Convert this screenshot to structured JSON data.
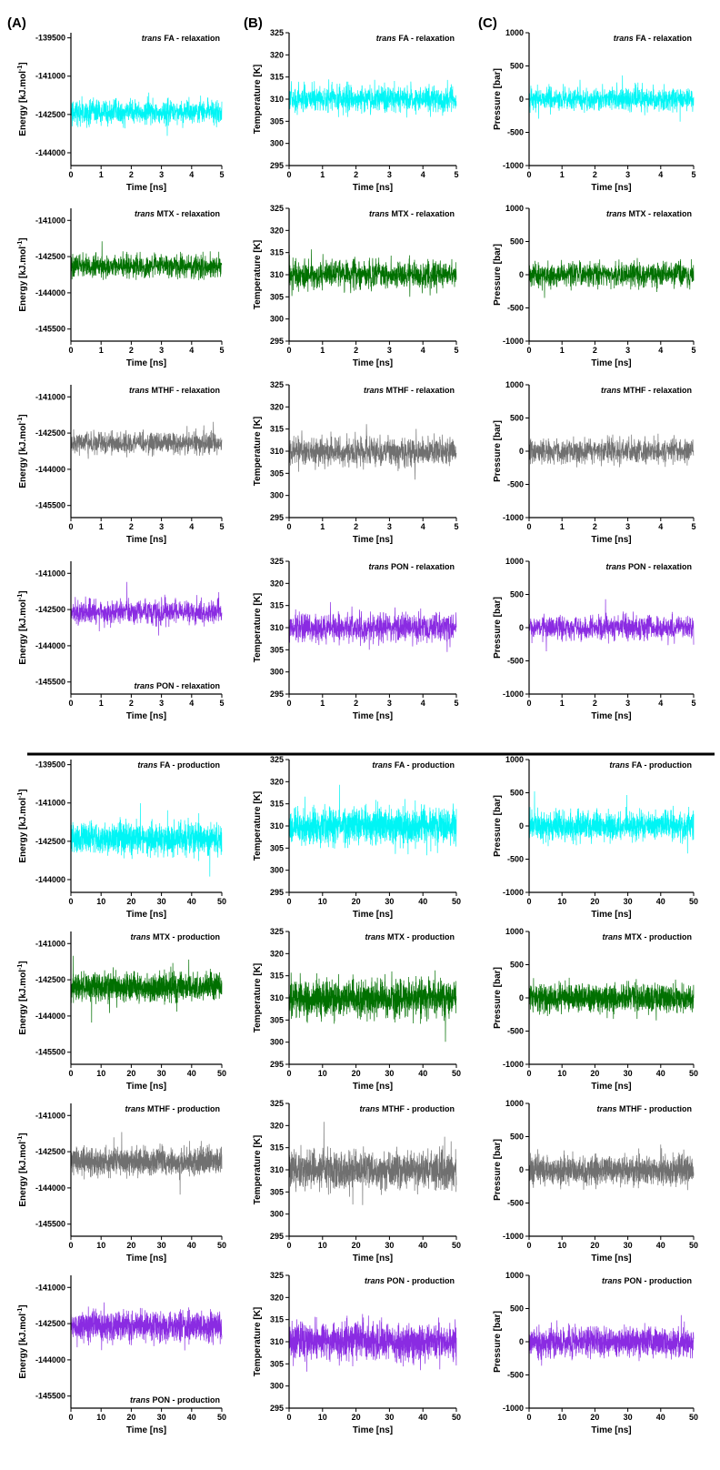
{
  "panel_letters": [
    "(A)",
    "(B)",
    "(C)"
  ],
  "colors": {
    "FA": "#00f5f5",
    "MTX": "#007000",
    "MTHF": "#707070",
    "PON": "#8a2be2",
    "divider": "#000000"
  },
  "chart_data": [
    {
      "type": "line",
      "column": "A",
      "row": 0,
      "series_key": "FA",
      "title_italic": "trans",
      "title": "FA - relaxation",
      "xlabel": "Time [ns]",
      "ylabel": "Energy [kJ.mol-1]",
      "xlim": [
        0,
        5
      ],
      "xticks": [
        0,
        1,
        2,
        3,
        4,
        5
      ],
      "ylim": [
        -144500,
        -139300
      ],
      "yticks": [
        -139500,
        -141000,
        -142500,
        -144000
      ],
      "center": -142400,
      "amplitude": 600,
      "noise_points": 1000,
      "series": [
        {
          "name": "trans FA - relaxation"
        }
      ]
    },
    {
      "type": "line",
      "column": "B",
      "row": 0,
      "series_key": "FA",
      "title_italic": "trans",
      "title": "FA - relaxation",
      "xlabel": "Time [ns]",
      "ylabel": "Temperature [K]",
      "xlim": [
        0,
        5
      ],
      "xticks": [
        0,
        1,
        2,
        3,
        4,
        5
      ],
      "ylim": [
        295,
        325
      ],
      "yticks": [
        295,
        300,
        305,
        310,
        315,
        320,
        325
      ],
      "center": 310,
      "amplitude": 4,
      "noise_points": 1000,
      "series": [
        {
          "name": "trans FA - relaxation"
        }
      ]
    },
    {
      "type": "line",
      "column": "C",
      "row": 0,
      "series_key": "FA",
      "title_italic": "trans",
      "title": "FA - relaxation",
      "xlabel": "Time [ns]",
      "ylabel": "Pressure [bar]",
      "xlim": [
        0,
        5
      ],
      "xticks": [
        0,
        1,
        2,
        3,
        4,
        5
      ],
      "ylim": [
        -1000,
        1000
      ],
      "yticks": [
        -1000,
        -500,
        0,
        500,
        1000
      ],
      "center": 0,
      "amplitude": 220,
      "noise_points": 1000,
      "series": [
        {
          "name": "trans FA - relaxation"
        }
      ]
    },
    {
      "type": "line",
      "column": "A",
      "row": 1,
      "series_key": "MTX",
      "title_italic": "trans",
      "title": "MTX - relaxation",
      "xlabel": "Time [ns]",
      "ylabel": "Energy [kJ.mol-1]",
      "xlim": [
        0,
        5
      ],
      "xticks": [
        0,
        1,
        2,
        3,
        4,
        5
      ],
      "ylim": [
        -146000,
        -140500
      ],
      "yticks": [
        -141000,
        -142500,
        -144000,
        -145500
      ],
      "center": -142900,
      "amplitude": 600,
      "noise_points": 1000,
      "series": [
        {
          "name": "trans MTX - relaxation"
        }
      ]
    },
    {
      "type": "line",
      "column": "B",
      "row": 1,
      "series_key": "MTX",
      "title_italic": "trans",
      "title": "MTX - relaxation",
      "xlabel": "Time [ns]",
      "ylabel": "Temperature [K]",
      "xlim": [
        0,
        5
      ],
      "xticks": [
        0,
        1,
        2,
        3,
        4,
        5
      ],
      "ylim": [
        295,
        325
      ],
      "yticks": [
        295,
        300,
        305,
        310,
        315,
        320,
        325
      ],
      "center": 310,
      "amplitude": 4,
      "noise_points": 1000,
      "series": [
        {
          "name": "trans MTX - relaxation"
        }
      ]
    },
    {
      "type": "line",
      "column": "C",
      "row": 1,
      "series_key": "MTX",
      "title_italic": "trans",
      "title": "MTX - relaxation",
      "xlabel": "Time [ns]",
      "ylabel": "Pressure [bar]",
      "xlim": [
        0,
        5
      ],
      "xticks": [
        0,
        1,
        2,
        3,
        4,
        5
      ],
      "ylim": [
        -1000,
        1000
      ],
      "yticks": [
        -1000,
        -500,
        0,
        500,
        1000
      ],
      "center": 0,
      "amplitude": 220,
      "noise_points": 1000,
      "series": [
        {
          "name": "trans MTX - relaxation"
        }
      ]
    },
    {
      "type": "line",
      "column": "A",
      "row": 2,
      "series_key": "MTHF",
      "title_italic": "trans",
      "title": "MTHF - relaxation",
      "xlabel": "Time [ns]",
      "ylabel": "Energy [kJ.mol-1]",
      "xlim": [
        0,
        5
      ],
      "xticks": [
        0,
        1,
        2,
        3,
        4,
        5
      ],
      "ylim": [
        -146000,
        -140500
      ],
      "yticks": [
        -141000,
        -142500,
        -144000,
        -145500
      ],
      "center": -142900,
      "amplitude": 550,
      "noise_points": 1000,
      "series": [
        {
          "name": "trans MTHF - relaxation"
        }
      ]
    },
    {
      "type": "line",
      "column": "B",
      "row": 2,
      "series_key": "MTHF",
      "title_italic": "trans",
      "title": "MTHF - relaxation",
      "xlabel": "Time [ns]",
      "ylabel": "Temperature [K]",
      "xlim": [
        0,
        5
      ],
      "xticks": [
        0,
        1,
        2,
        3,
        4,
        5
      ],
      "ylim": [
        295,
        325
      ],
      "yticks": [
        295,
        300,
        305,
        310,
        315,
        320,
        325
      ],
      "center": 310,
      "amplitude": 4,
      "noise_points": 1000,
      "series": [
        {
          "name": "trans MTHF - relaxation"
        }
      ]
    },
    {
      "type": "line",
      "column": "C",
      "row": 2,
      "series_key": "MTHF",
      "title_italic": "trans",
      "title": "MTHF - relaxation",
      "xlabel": "Time [ns]",
      "ylabel": "Pressure [bar]",
      "xlim": [
        0,
        5
      ],
      "xticks": [
        0,
        1,
        2,
        3,
        4,
        5
      ],
      "ylim": [
        -1000,
        1000
      ],
      "yticks": [
        -1000,
        -500,
        0,
        500,
        1000
      ],
      "center": 0,
      "amplitude": 220,
      "noise_points": 1000,
      "series": [
        {
          "name": "trans MTHF - relaxation"
        }
      ]
    },
    {
      "type": "line",
      "column": "A",
      "row": 3,
      "series_key": "PON",
      "title_italic": "trans",
      "title": "PON - relaxation",
      "title_position": "bottom",
      "xlabel": "Time [ns]",
      "ylabel": "Energy [kJ.mol-1]",
      "xlim": [
        0,
        5
      ],
      "xticks": [
        0,
        1,
        2,
        3,
        4,
        5
      ],
      "ylim": [
        -146000,
        -140500
      ],
      "yticks": [
        -141000,
        -142500,
        -144000,
        -145500
      ],
      "center": -142600,
      "amplitude": 600,
      "noise_points": 1000,
      "series": [
        {
          "name": "trans PON - relaxation"
        }
      ]
    },
    {
      "type": "line",
      "column": "B",
      "row": 3,
      "series_key": "PON",
      "title_italic": "trans",
      "title": "PON - relaxation",
      "xlabel": "Time [ns]",
      "ylabel": "Temperature [K]",
      "xlim": [
        0,
        5
      ],
      "xticks": [
        0,
        1,
        2,
        3,
        4,
        5
      ],
      "ylim": [
        295,
        325
      ],
      "yticks": [
        295,
        300,
        305,
        310,
        315,
        320,
        325
      ],
      "center": 310,
      "amplitude": 4,
      "noise_points": 1000,
      "series": [
        {
          "name": "trans PON - relaxation"
        }
      ]
    },
    {
      "type": "line",
      "column": "C",
      "row": 3,
      "series_key": "PON",
      "title_italic": "trans",
      "title": "PON - relaxation",
      "xlabel": "Time [ns]",
      "ylabel": "Pressure [bar]",
      "xlim": [
        0,
        5
      ],
      "xticks": [
        0,
        1,
        2,
        3,
        4,
        5
      ],
      "ylim": [
        -1000,
        1000
      ],
      "yticks": [
        -1000,
        -500,
        0,
        500,
        1000
      ],
      "center": 0,
      "amplitude": 220,
      "noise_points": 1000,
      "series": [
        {
          "name": "trans PON - relaxation"
        }
      ]
    },
    {
      "type": "line",
      "column": "A",
      "row": 4,
      "series_key": "FA",
      "title_italic": "trans",
      "title": "FA - production",
      "xlabel": "Time [ns]",
      "ylabel": "Energy [kJ.mol-1]",
      "xlim": [
        0,
        50
      ],
      "xticks": [
        0,
        10,
        20,
        30,
        40,
        50
      ],
      "ylim": [
        -144500,
        -139300
      ],
      "yticks": [
        -139500,
        -141000,
        -142500,
        -144000
      ],
      "center": -142400,
      "amplitude": 700,
      "noise_points": 1400,
      "series": [
        {
          "name": "trans FA - production"
        }
      ]
    },
    {
      "type": "line",
      "column": "B",
      "row": 4,
      "series_key": "FA",
      "title_italic": "trans",
      "title": "FA - production",
      "xlabel": "Time [ns]",
      "ylabel": "Temperature [K]",
      "xlim": [
        0,
        50
      ],
      "xticks": [
        0,
        10,
        20,
        30,
        40,
        50
      ],
      "ylim": [
        295,
        325
      ],
      "yticks": [
        295,
        300,
        305,
        310,
        315,
        320,
        325
      ],
      "center": 310,
      "amplitude": 5,
      "noise_points": 1400,
      "series": [
        {
          "name": "trans FA - production"
        }
      ]
    },
    {
      "type": "line",
      "column": "C",
      "row": 4,
      "series_key": "FA",
      "title_italic": "trans",
      "title": "FA - production",
      "xlabel": "Time [ns]",
      "ylabel": "Pressure [bar]",
      "xlim": [
        0,
        50
      ],
      "xticks": [
        0,
        10,
        20,
        30,
        40,
        50
      ],
      "ylim": [
        -1000,
        1000
      ],
      "yticks": [
        -1000,
        -500,
        0,
        500,
        1000
      ],
      "center": 0,
      "amplitude": 260,
      "noise_points": 1400,
      "series": [
        {
          "name": "trans FA - production"
        }
      ]
    },
    {
      "type": "line",
      "column": "A",
      "row": 5,
      "series_key": "MTX",
      "title_italic": "trans",
      "title": "MTX - production",
      "xlabel": "Time [ns]",
      "ylabel": "Energy [kJ.mol-1]",
      "xlim": [
        0,
        50
      ],
      "xticks": [
        0,
        10,
        20,
        30,
        40,
        50
      ],
      "ylim": [
        -146000,
        -140500
      ],
      "yticks": [
        -141000,
        -142500,
        -144000,
        -145500
      ],
      "center": -142800,
      "amplitude": 700,
      "noise_points": 1400,
      "series": [
        {
          "name": "trans MTX - production"
        }
      ]
    },
    {
      "type": "line",
      "column": "B",
      "row": 5,
      "series_key": "MTX",
      "title_italic": "trans",
      "title": "MTX - production",
      "xlabel": "Time [ns]",
      "ylabel": "Temperature [K]",
      "xlim": [
        0,
        50
      ],
      "xticks": [
        0,
        10,
        20,
        30,
        40,
        50
      ],
      "ylim": [
        295,
        325
      ],
      "yticks": [
        295,
        300,
        305,
        310,
        315,
        320,
        325
      ],
      "center": 310,
      "amplitude": 5,
      "noise_points": 1400,
      "series": [
        {
          "name": "trans MTX - production"
        }
      ]
    },
    {
      "type": "line",
      "column": "C",
      "row": 5,
      "series_key": "MTX",
      "title_italic": "trans",
      "title": "MTX - production",
      "xlabel": "Time [ns]",
      "ylabel": "Pressure [bar]",
      "xlim": [
        0,
        50
      ],
      "xticks": [
        0,
        10,
        20,
        30,
        40,
        50
      ],
      "ylim": [
        -1000,
        1000
      ],
      "yticks": [
        -1000,
        -500,
        0,
        500,
        1000
      ],
      "center": 0,
      "amplitude": 260,
      "noise_points": 1400,
      "series": [
        {
          "name": "trans MTX - production"
        }
      ]
    },
    {
      "type": "line",
      "column": "A",
      "row": 6,
      "series_key": "MTHF",
      "title_italic": "trans",
      "title": "MTHF - production",
      "xlabel": "Time [ns]",
      "ylabel": "Energy [kJ.mol-1]",
      "xlim": [
        0,
        50
      ],
      "xticks": [
        0,
        10,
        20,
        30,
        40,
        50
      ],
      "ylim": [
        -146000,
        -140500
      ],
      "yticks": [
        -141000,
        -142500,
        -144000,
        -145500
      ],
      "center": -142900,
      "amplitude": 650,
      "noise_points": 1400,
      "series": [
        {
          "name": "trans MTHF - production"
        }
      ]
    },
    {
      "type": "line",
      "column": "B",
      "row": 6,
      "series_key": "MTHF",
      "title_italic": "trans",
      "title": "MTHF - production",
      "xlabel": "Time [ns]",
      "ylabel": "Temperature [K]",
      "xlim": [
        0,
        50
      ],
      "xticks": [
        0,
        10,
        20,
        30,
        40,
        50
      ],
      "ylim": [
        295,
        325
      ],
      "yticks": [
        295,
        300,
        305,
        310,
        315,
        320,
        325
      ],
      "center": 310,
      "amplitude": 5,
      "noise_points": 1400,
      "series": [
        {
          "name": "trans MTHF - production"
        }
      ]
    },
    {
      "type": "line",
      "column": "C",
      "row": 6,
      "series_key": "MTHF",
      "title_italic": "trans",
      "title": "MTHF - production",
      "xlabel": "Time [ns]",
      "ylabel": "Pressure [bar]",
      "xlim": [
        0,
        50
      ],
      "xticks": [
        0,
        10,
        20,
        30,
        40,
        50
      ],
      "ylim": [
        -1000,
        1000
      ],
      "yticks": [
        -1000,
        -500,
        0,
        500,
        1000
      ],
      "center": 0,
      "amplitude": 260,
      "noise_points": 1400,
      "series": [
        {
          "name": "trans MTHF - production"
        }
      ]
    },
    {
      "type": "line",
      "column": "A",
      "row": 7,
      "series_key": "PON",
      "title_italic": "trans",
      "title": "PON - production",
      "title_position": "bottom",
      "xlabel": "Time [ns]",
      "ylabel": "Energy [kJ.mol-1]",
      "xlim": [
        0,
        50
      ],
      "xticks": [
        0,
        10,
        20,
        30,
        40,
        50
      ],
      "ylim": [
        -146000,
        -140500
      ],
      "yticks": [
        -141000,
        -142500,
        -144000,
        -145500
      ],
      "center": -142600,
      "amplitude": 700,
      "noise_points": 1400,
      "series": [
        {
          "name": "trans PON - production"
        }
      ]
    },
    {
      "type": "line",
      "column": "B",
      "row": 7,
      "series_key": "PON",
      "title_italic": "trans",
      "title": "PON - production",
      "xlabel": "Time [ns]",
      "ylabel": "Temperature [K]",
      "xlim": [
        0,
        50
      ],
      "xticks": [
        0,
        10,
        20,
        30,
        40,
        50
      ],
      "ylim": [
        295,
        325
      ],
      "yticks": [
        295,
        300,
        305,
        310,
        315,
        320,
        325
      ],
      "center": 310,
      "amplitude": 5,
      "noise_points": 1400,
      "series": [
        {
          "name": "trans PON - production"
        }
      ]
    },
    {
      "type": "line",
      "column": "C",
      "row": 7,
      "series_key": "PON",
      "title_italic": "trans",
      "title": "PON - production",
      "xlabel": "Time [ns]",
      "ylabel": "Pressure [bar]",
      "xlim": [
        0,
        50
      ],
      "xticks": [
        0,
        10,
        20,
        30,
        40,
        50
      ],
      "ylim": [
        -1000,
        1000
      ],
      "yticks": [
        -1000,
        -500,
        0,
        500,
        1000
      ],
      "center": 0,
      "amplitude": 260,
      "noise_points": 1400,
      "series": [
        {
          "name": "trans PON - production"
        }
      ]
    }
  ]
}
